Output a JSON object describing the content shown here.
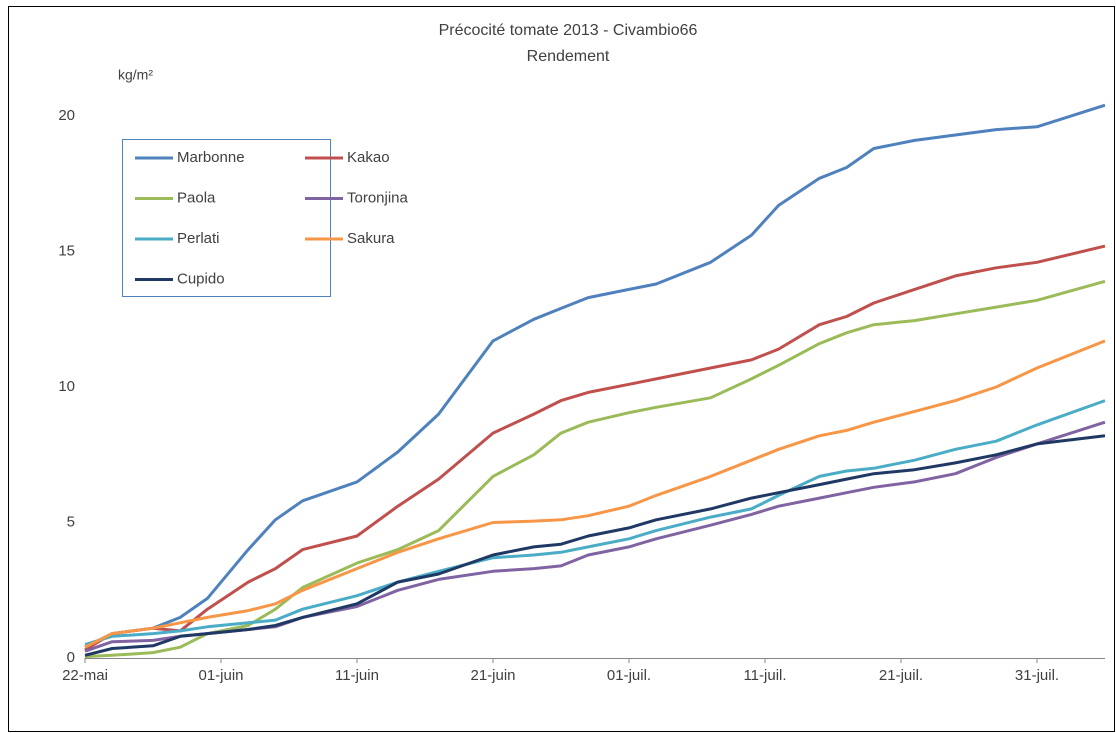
{
  "chart_data": {
    "type": "line",
    "title": "Précocité tomate 2013 - Civambio66",
    "subtitle": "Rendement",
    "y_label": "kg/m²",
    "x": [
      "2013-05-22",
      "2013-05-24",
      "2013-05-27",
      "2013-05-29",
      "2013-05-31",
      "2013-06-03",
      "2013-06-05",
      "2013-06-07",
      "2013-06-11",
      "2013-06-14",
      "2013-06-17",
      "2013-06-21",
      "2013-06-24",
      "2013-06-26",
      "2013-06-28",
      "2013-07-01",
      "2013-07-03",
      "2013-07-07",
      "2013-07-10",
      "2013-07-12",
      "2013-07-15",
      "2013-07-17",
      "2013-07-19",
      "2013-07-22",
      "2013-07-25",
      "2013-07-28",
      "2013-07-31",
      "2013-08-05"
    ],
    "series": [
      {
        "name": "Marbonne",
        "color": "#4f81bd",
        "values": [
          0.4,
          0.9,
          1.1,
          1.5,
          2.2,
          4.0,
          5.1,
          5.8,
          6.5,
          7.6,
          9.0,
          11.7,
          12.5,
          12.9,
          13.3,
          13.6,
          13.8,
          14.6,
          15.6,
          16.7,
          17.7,
          18.1,
          18.8,
          19.1,
          19.3,
          19.5,
          19.6,
          20.4
        ]
      },
      {
        "name": "Kakao",
        "color": "#c0504d",
        "values": [
          0.3,
          0.9,
          1.1,
          1.0,
          1.8,
          2.8,
          3.3,
          4.0,
          4.5,
          5.6,
          6.6,
          8.3,
          9.0,
          9.5,
          9.8,
          10.1,
          10.3,
          10.7,
          11.0,
          11.4,
          12.3,
          12.6,
          13.1,
          13.6,
          14.1,
          14.4,
          14.6,
          15.2
        ]
      },
      {
        "name": "Paola",
        "color": "#9bbb59",
        "values": [
          0.05,
          0.1,
          0.2,
          0.4,
          0.9,
          1.2,
          1.8,
          2.6,
          3.5,
          4.0,
          4.7,
          6.7,
          7.5,
          8.3,
          8.7,
          9.05,
          9.25,
          9.6,
          10.3,
          10.8,
          11.6,
          12.0,
          12.3,
          12.45,
          12.7,
          12.95,
          13.2,
          13.9
        ]
      },
      {
        "name": "Toronjina",
        "color": "#8064a2",
        "values": [
          0.25,
          0.6,
          0.65,
          0.8,
          0.9,
          1.05,
          1.15,
          1.5,
          1.9,
          2.5,
          2.9,
          3.2,
          3.3,
          3.4,
          3.8,
          4.1,
          4.4,
          4.9,
          5.3,
          5.6,
          5.9,
          6.1,
          6.3,
          6.5,
          6.8,
          7.4,
          7.9,
          8.7
        ]
      },
      {
        "name": "Perlati",
        "color": "#4bacc6",
        "values": [
          0.5,
          0.8,
          0.9,
          1.0,
          1.15,
          1.3,
          1.4,
          1.8,
          2.3,
          2.8,
          3.2,
          3.7,
          3.8,
          3.9,
          4.1,
          4.4,
          4.7,
          5.2,
          5.5,
          6.0,
          6.7,
          6.9,
          7.0,
          7.3,
          7.7,
          8.0,
          8.6,
          9.5
        ]
      },
      {
        "name": "Sakura",
        "color": "#f79646",
        "values": [
          0.4,
          0.9,
          1.1,
          1.3,
          1.5,
          1.75,
          2.0,
          2.5,
          3.3,
          3.9,
          4.4,
          5.0,
          5.05,
          5.1,
          5.25,
          5.6,
          6.0,
          6.7,
          7.3,
          7.7,
          8.2,
          8.4,
          8.7,
          9.1,
          9.5,
          10.0,
          10.7,
          11.7
        ]
      },
      {
        "name": "Cupido",
        "color": "#1f3864",
        "values": [
          0.1,
          0.35,
          0.45,
          0.8,
          0.9,
          1.05,
          1.2,
          1.5,
          2.0,
          2.8,
          3.1,
          3.8,
          4.1,
          4.2,
          4.5,
          4.8,
          5.1,
          5.5,
          5.9,
          6.1,
          6.4,
          6.6,
          6.8,
          6.95,
          7.2,
          7.5,
          7.9,
          8.2
        ]
      }
    ],
    "xlim": [
      "2013-05-22",
      "2013-08-05"
    ],
    "xticks": [
      {
        "value": "2013-05-22",
        "label": "22-mai"
      },
      {
        "value": "2013-06-01",
        "label": "01-juin"
      },
      {
        "value": "2013-06-11",
        "label": "11-juin"
      },
      {
        "value": "2013-06-21",
        "label": "21-juin"
      },
      {
        "value": "2013-07-01",
        "label": "01-juil."
      },
      {
        "value": "2013-07-11",
        "label": "11-juil."
      },
      {
        "value": "2013-07-21",
        "label": "21-juil."
      },
      {
        "value": "2013-07-31",
        "label": "31-juil."
      }
    ],
    "ylim": [
      0,
      20
    ],
    "yticks": [
      0,
      5,
      10,
      15,
      20
    ],
    "grid": false,
    "legend": "top-left"
  }
}
